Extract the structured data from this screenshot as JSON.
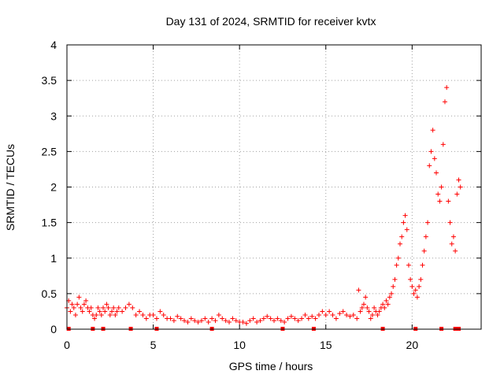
{
  "chart_data": {
    "type": "scatter",
    "title": "Day 131 of 2024, SRMTID for receiver kvtx",
    "xlabel": "GPS time / hours",
    "ylabel": "SRMTID / TECUs",
    "xlim": [
      0,
      24
    ],
    "ylim": [
      0,
      4
    ],
    "xticks": [
      0,
      5,
      10,
      15,
      20
    ],
    "xtick_labels": [
      "0",
      "5",
      "10",
      "15",
      "20"
    ],
    "yticks": [
      0,
      0.5,
      1,
      1.5,
      2,
      2.5,
      3,
      3.5,
      4
    ],
    "ytick_labels": [
      "0",
      "0.5",
      "1",
      "1.5",
      "2",
      "2.5",
      "3",
      "3.5",
      "4"
    ],
    "grid": true,
    "marker": "+",
    "series": [
      {
        "name": "SRMTID",
        "color": "#ff0000",
        "x": [
          0.0,
          0.1,
          0.2,
          0.3,
          0.4,
          0.5,
          0.6,
          0.7,
          0.8,
          0.9,
          1.0,
          1.1,
          1.2,
          1.3,
          1.4,
          1.5,
          1.6,
          1.7,
          1.8,
          1.9,
          2.0,
          2.1,
          2.2,
          2.3,
          2.4,
          2.5,
          2.6,
          2.7,
          2.8,
          2.9,
          3.0,
          3.2,
          3.4,
          3.6,
          3.8,
          4.0,
          4.2,
          4.4,
          4.6,
          4.8,
          5.0,
          5.2,
          5.4,
          5.6,
          5.8,
          6.0,
          6.2,
          6.4,
          6.6,
          6.8,
          7.0,
          7.2,
          7.4,
          7.6,
          7.8,
          8.0,
          8.2,
          8.4,
          8.6,
          8.8,
          9.0,
          9.2,
          9.4,
          9.6,
          9.8,
          10.0,
          10.2,
          10.4,
          10.6,
          10.8,
          11.0,
          11.2,
          11.4,
          11.6,
          11.8,
          12.0,
          12.2,
          12.4,
          12.6,
          12.8,
          13.0,
          13.2,
          13.4,
          13.6,
          13.8,
          14.0,
          14.2,
          14.4,
          14.6,
          14.8,
          15.0,
          15.2,
          15.4,
          15.6,
          15.8,
          16.0,
          16.2,
          16.4,
          16.6,
          16.8,
          16.9,
          17.0,
          17.1,
          17.2,
          17.3,
          17.4,
          17.5,
          17.6,
          17.7,
          17.8,
          17.9,
          18.0,
          18.1,
          18.2,
          18.3,
          18.4,
          18.5,
          18.6,
          18.7,
          18.8,
          18.9,
          19.0,
          19.1,
          19.2,
          19.3,
          19.4,
          19.5,
          19.6,
          19.7,
          19.8,
          19.9,
          20.0,
          20.1,
          20.2,
          20.3,
          20.4,
          20.5,
          20.6,
          20.7,
          20.8,
          20.9,
          21.0,
          21.1,
          21.2,
          21.3,
          21.4,
          21.5,
          21.6,
          21.7,
          21.8,
          21.9,
          22.0,
          22.1,
          22.2,
          22.3,
          22.4,
          22.5,
          22.6,
          22.7,
          22.8
        ],
        "y": [
          0.3,
          0.4,
          0.25,
          0.35,
          0.3,
          0.2,
          0.35,
          0.45,
          0.3,
          0.25,
          0.35,
          0.4,
          0.3,
          0.25,
          0.3,
          0.2,
          0.15,
          0.2,
          0.3,
          0.25,
          0.2,
          0.3,
          0.25,
          0.35,
          0.3,
          0.2,
          0.25,
          0.3,
          0.2,
          0.25,
          0.3,
          0.25,
          0.3,
          0.35,
          0.3,
          0.2,
          0.25,
          0.2,
          0.15,
          0.2,
          0.2,
          0.15,
          0.25,
          0.2,
          0.15,
          0.15,
          0.12,
          0.18,
          0.15,
          0.12,
          0.1,
          0.15,
          0.12,
          0.1,
          0.12,
          0.15,
          0.1,
          0.15,
          0.12,
          0.2,
          0.15,
          0.12,
          0.1,
          0.15,
          0.12,
          0.1,
          0.1,
          0.08,
          0.12,
          0.15,
          0.1,
          0.12,
          0.15,
          0.18,
          0.15,
          0.12,
          0.15,
          0.12,
          0.1,
          0.15,
          0.18,
          0.15,
          0.12,
          0.15,
          0.2,
          0.15,
          0.18,
          0.15,
          0.2,
          0.25,
          0.2,
          0.25,
          0.2,
          0.15,
          0.22,
          0.25,
          0.2,
          0.18,
          0.2,
          0.15,
          0.55,
          0.25,
          0.3,
          0.35,
          0.45,
          0.3,
          0.25,
          0.15,
          0.2,
          0.3,
          0.25,
          0.2,
          0.25,
          0.3,
          0.35,
          0.3,
          0.4,
          0.35,
          0.45,
          0.5,
          0.6,
          0.7,
          0.9,
          1.0,
          1.2,
          1.3,
          1.5,
          1.6,
          1.4,
          0.9,
          0.7,
          0.6,
          0.5,
          0.55,
          0.45,
          0.6,
          0.7,
          0.9,
          1.1,
          1.3,
          1.5,
          2.3,
          2.5,
          2.8,
          2.4,
          2.2,
          1.9,
          1.8,
          2.0,
          2.6,
          3.2,
          3.4,
          1.8,
          1.5,
          1.2,
          1.3,
          1.1,
          1.9,
          2.1,
          2.0
        ]
      }
    ],
    "gap_marks_x": [
      0.1,
      1.5,
      2.1,
      3.7,
      5.2,
      8.4,
      12.5,
      14.3,
      18.3,
      20.2,
      21.7,
      22.5,
      22.7
    ]
  }
}
